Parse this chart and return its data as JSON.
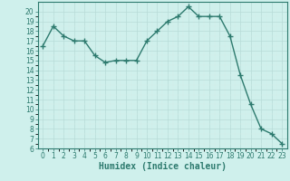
{
  "xlabel": "Humidex (Indice chaleur)",
  "ylabel": "",
  "x": [
    0,
    1,
    2,
    3,
    4,
    5,
    6,
    7,
    8,
    9,
    10,
    11,
    12,
    13,
    14,
    15,
    16,
    17,
    18,
    19,
    20,
    21,
    22,
    23
  ],
  "y": [
    16.5,
    18.5,
    17.5,
    17.0,
    17.0,
    15.5,
    14.8,
    15.0,
    15.0,
    15.0,
    17.0,
    18.0,
    19.0,
    19.5,
    20.5,
    19.5,
    19.5,
    19.5,
    17.5,
    13.5,
    10.5,
    8.0,
    7.5,
    6.5
  ],
  "line_color": "#2d7a6e",
  "marker": "+",
  "marker_size": 4,
  "bg_color": "#cff0ec",
  "grid_color_major": "#b8dbd7",
  "grid_color_minor": "#d4edea",
  "ylim": [
    6,
    21
  ],
  "xlim": [
    -0.5,
    23.5
  ],
  "yticks": [
    6,
    7,
    8,
    9,
    10,
    11,
    12,
    13,
    14,
    15,
    16,
    17,
    18,
    19,
    20
  ],
  "xticks": [
    0,
    1,
    2,
    3,
    4,
    5,
    6,
    7,
    8,
    9,
    10,
    11,
    12,
    13,
    14,
    15,
    16,
    17,
    18,
    19,
    20,
    21,
    22,
    23
  ],
  "tick_fontsize": 5.5,
  "xlabel_fontsize": 7,
  "axis_color": "#2d7a6e",
  "spine_color": "#2d7a6e",
  "linewidth": 1.0
}
